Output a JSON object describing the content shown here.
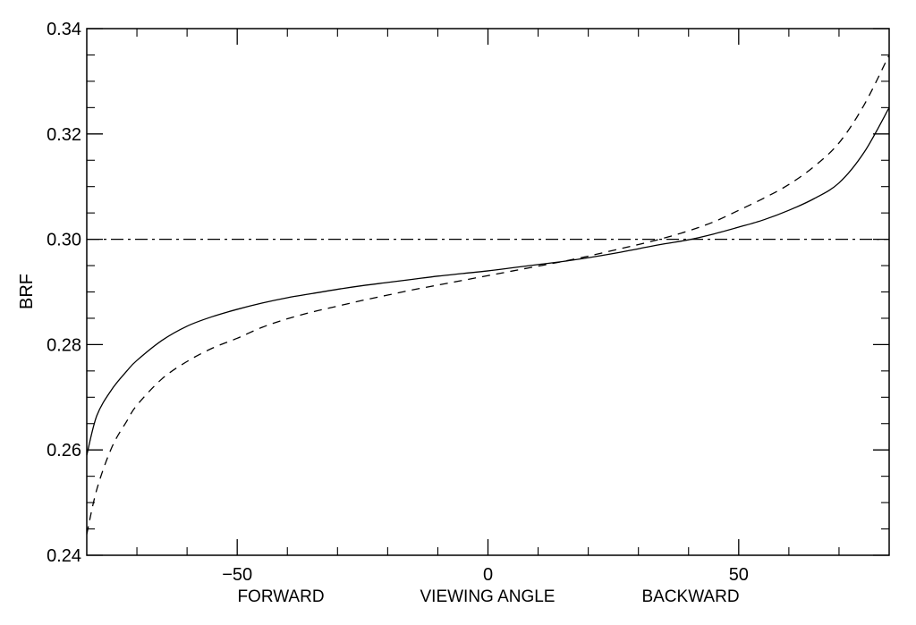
{
  "chart_data": {
    "type": "line",
    "title": "",
    "xlabel": "VIEWING ANGLE",
    "xlabel_left": "FORWARD",
    "xlabel_right": "BACKWARD",
    "ylabel": "BRF",
    "xlim": [
      -80,
      80
    ],
    "ylim": [
      0.24,
      0.34
    ],
    "xticks": [
      -50,
      0,
      50
    ],
    "xtick_labels": [
      "−50",
      "0",
      "50"
    ],
    "yticks": [
      0.24,
      0.26,
      0.28,
      0.3,
      0.32,
      0.34
    ],
    "ytick_labels": [
      "0.24",
      "0.26",
      "0.28",
      "0.30",
      "0.32",
      "0.34"
    ],
    "grid": false,
    "legend": "none",
    "series": [
      {
        "style": "solid",
        "x": [
          -80,
          -78,
          -75,
          -72,
          -70,
          -65,
          -60,
          -55,
          -50,
          -45,
          -40,
          -35,
          -30,
          -25,
          -20,
          -15,
          -10,
          -5,
          0,
          5,
          10,
          15,
          20,
          25,
          30,
          35,
          40,
          45,
          50,
          55,
          60,
          65,
          70,
          75,
          80
        ],
        "y": [
          0.259,
          0.2665,
          0.2715,
          0.275,
          0.277,
          0.2808,
          0.2835,
          0.2853,
          0.2867,
          0.2879,
          0.2889,
          0.2897,
          0.2905,
          0.2912,
          0.2918,
          0.2924,
          0.293,
          0.2935,
          0.294,
          0.2946,
          0.2952,
          0.2958,
          0.2965,
          0.2973,
          0.2982,
          0.2991,
          0.2999,
          0.301,
          0.3023,
          0.3037,
          0.3055,
          0.3077,
          0.3107,
          0.3165,
          0.325
        ]
      },
      {
        "style": "dashed",
        "x": [
          -80,
          -78,
          -75,
          -72,
          -70,
          -65,
          -60,
          -55,
          -50,
          -45,
          -40,
          -35,
          -30,
          -25,
          -20,
          -15,
          -10,
          -5,
          0,
          5,
          10,
          15,
          20,
          25,
          30,
          35,
          40,
          45,
          50,
          55,
          60,
          65,
          70,
          75,
          80
        ],
        "y": [
          0.244,
          0.2525,
          0.2605,
          0.2655,
          0.2685,
          0.2735,
          0.2768,
          0.2793,
          0.2812,
          0.2833,
          0.2849,
          0.2862,
          0.2873,
          0.2884,
          0.2894,
          0.2904,
          0.2913,
          0.2922,
          0.2931,
          0.294,
          0.2949,
          0.2958,
          0.2968,
          0.2979,
          0.299,
          0.3002,
          0.3016,
          0.3033,
          0.3055,
          0.3078,
          0.3104,
          0.3138,
          0.3183,
          0.3255,
          0.335
        ]
      },
      {
        "style": "dashdot",
        "x": [
          -80,
          80
        ],
        "y": [
          0.3,
          0.3
        ]
      }
    ]
  }
}
